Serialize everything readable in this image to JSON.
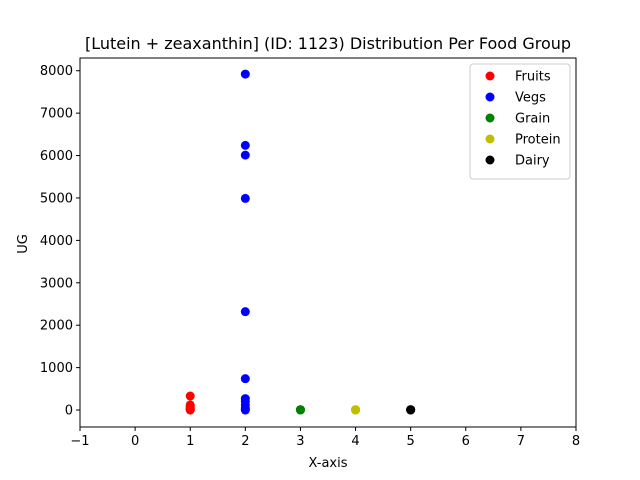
{
  "chart_data": {
    "type": "scatter",
    "title": "[Lutein + zeaxanthin] (ID: 1123) Distribution Per Food Group",
    "xlabel": "X-axis",
    "ylabel": "UG",
    "xlim": [
      -1,
      8
    ],
    "ylim": [
      -400,
      8300
    ],
    "xticks": [
      -1,
      0,
      1,
      2,
      3,
      4,
      5,
      6,
      7,
      8
    ],
    "yticks": [
      0,
      1000,
      2000,
      3000,
      4000,
      5000,
      6000,
      7000,
      8000
    ],
    "grid": false,
    "legend_position": "top-right",
    "series": [
      {
        "name": "Fruits",
        "color": "#ff0000",
        "x": [
          1,
          1,
          1,
          1,
          1,
          1,
          1,
          1
        ],
        "y": [
          330,
          120,
          90,
          60,
          40,
          20,
          10,
          0
        ]
      },
      {
        "name": "Vegs",
        "color": "#0000ff",
        "x": [
          2,
          2,
          2,
          2,
          2,
          2,
          2,
          2,
          2,
          2,
          2,
          2
        ],
        "y": [
          7920,
          6240,
          6010,
          4990,
          2320,
          740,
          270,
          200,
          120,
          50,
          20,
          0
        ]
      },
      {
        "name": "Grain",
        "color": "#008000",
        "x": [
          3,
          3,
          3
        ],
        "y": [
          10,
          5,
          0
        ]
      },
      {
        "name": "Protein",
        "color": "#bfbf00",
        "x": [
          4,
          4,
          4
        ],
        "y": [
          10,
          5,
          0
        ]
      },
      {
        "name": "Dairy",
        "color": "#000000",
        "x": [
          5,
          5,
          5
        ],
        "y": [
          10,
          5,
          0
        ]
      }
    ]
  }
}
